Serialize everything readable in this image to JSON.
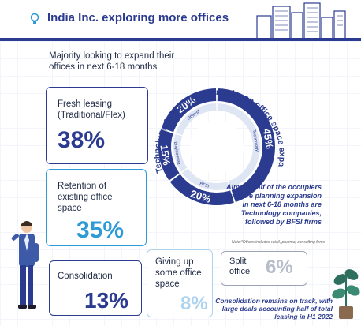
{
  "header": {
    "title": "India Inc. exploring more offices"
  },
  "subhead": "Majority looking to expand their offices in next 6-18 months",
  "cards": [
    {
      "key": "fresh",
      "label": "Fresh leasing (Traditional/Flex)",
      "value": "38%"
    },
    {
      "key": "retention",
      "label": "Retention of existing office space",
      "value": "35%"
    },
    {
      "key": "consolidation",
      "label": "Consolidation",
      "value": "13%"
    },
    {
      "key": "giving_up",
      "label": "Giving up some office space",
      "value": "8%"
    },
    {
      "key": "split",
      "label": "Split office",
      "value": "6%"
    }
  ],
  "donut_arc_title": "Technology & BFSI firms gung-ho on office space expansion",
  "chart_data": {
    "type": "pie",
    "donut": true,
    "categories": [
      "Technology",
      "BFSI",
      "Engineering",
      "Others*"
    ],
    "values": [
      45,
      20,
      15,
      20
    ],
    "value_labels": [
      "45%",
      "20%",
      "15%",
      "20%"
    ],
    "colors": [
      "#2b3b8f",
      "#2b3b8f",
      "#2b3b8f",
      "#2b3b8f"
    ]
  },
  "notes": {
    "almost_half": "Almost half of the occupiers who are planning expansion in next 6-18 months are Technology companies, followed by BFSI firms",
    "footnote": "Note:*Others includes retail, pharma, consulting firms",
    "consolidation_note": "Consolidation remains on track, with large deals accounting half of total leasing in H1 2022"
  },
  "colors": {
    "primary": "#2b3b8f",
    "accent": "#2e9bd6",
    "muted": "#6f7a8f"
  }
}
